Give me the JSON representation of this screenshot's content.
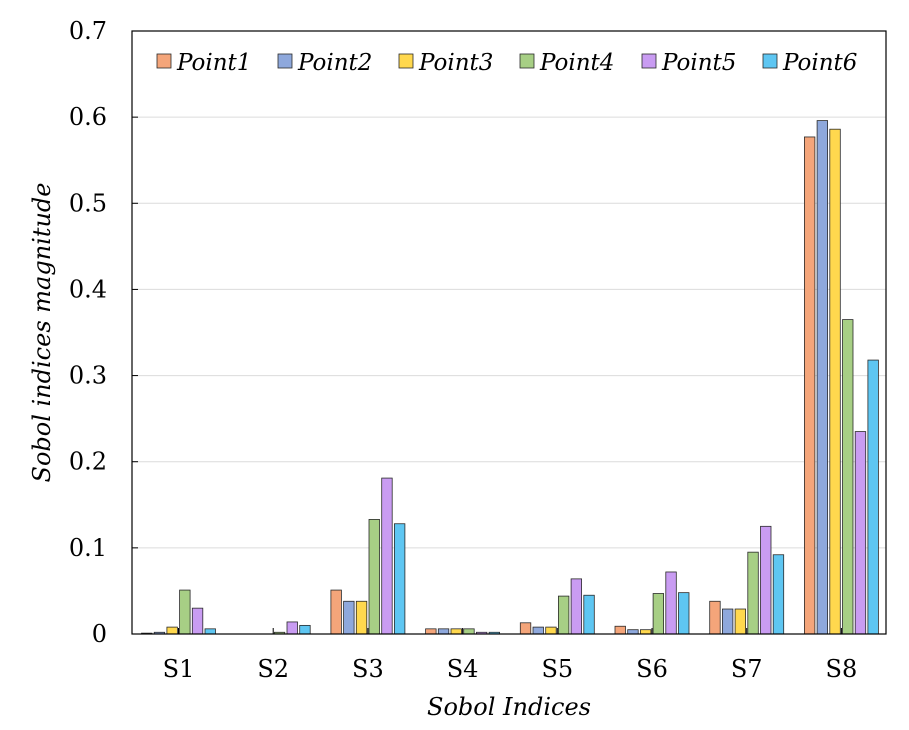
{
  "chart_data": {
    "type": "bar",
    "xlabel": "Sobol Indices",
    "ylabel": "Sobol indices magnitude",
    "ylim": [
      0,
      0.7
    ],
    "yticks": [
      "0",
      "0.1",
      "0.2",
      "0.3",
      "0.4",
      "0.5",
      "0.6",
      "0.7"
    ],
    "grid": "horizontal",
    "legend_position": "top-right",
    "categories": [
      "S1",
      "S2",
      "S3",
      "S4",
      "S5",
      "S6",
      "S7",
      "S8"
    ],
    "series": [
      {
        "name": "Point1",
        "color": "#f4a57a",
        "values": [
          0.001,
          0.0,
          0.051,
          0.006,
          0.013,
          0.009,
          0.038,
          0.577
        ]
      },
      {
        "name": "Point2",
        "color": "#8ea8dc",
        "values": [
          0.002,
          0.0,
          0.038,
          0.006,
          0.008,
          0.005,
          0.029,
          0.596
        ]
      },
      {
        "name": "Point3",
        "color": "#ffd84e",
        "values": [
          0.008,
          0.0,
          0.038,
          0.006,
          0.008,
          0.005,
          0.029,
          0.586
        ]
      },
      {
        "name": "Point4",
        "color": "#a7cf85",
        "values": [
          0.051,
          0.002,
          0.133,
          0.006,
          0.044,
          0.047,
          0.095,
          0.365
        ]
      },
      {
        "name": "Point5",
        "color": "#c99cf2",
        "values": [
          0.03,
          0.014,
          0.181,
          0.002,
          0.064,
          0.072,
          0.125,
          0.235
        ]
      },
      {
        "name": "Point6",
        "color": "#5ec6f2",
        "values": [
          0.006,
          0.01,
          0.128,
          0.002,
          0.045,
          0.048,
          0.092,
          0.318
        ]
      }
    ]
  }
}
